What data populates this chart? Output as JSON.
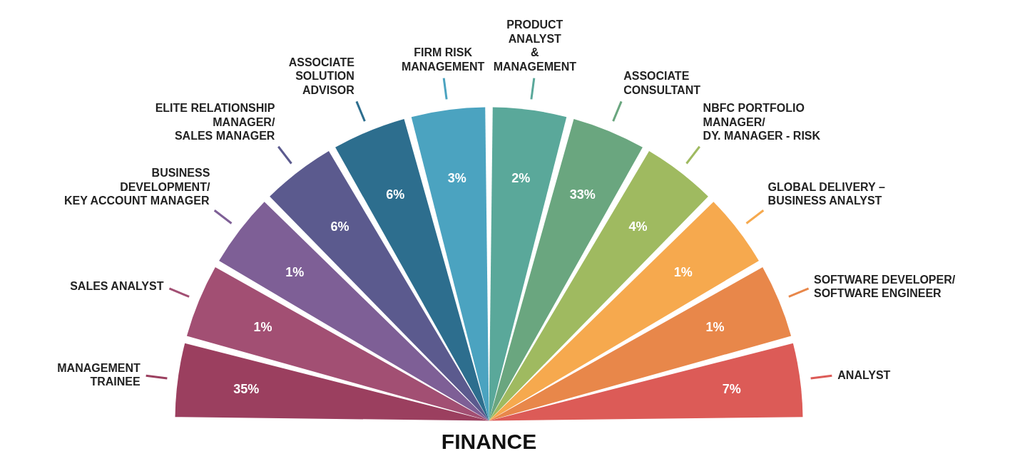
{
  "chart_data": {
    "type": "other",
    "title": "FINANCE",
    "categories": [
      "MANAGEMENT\nTRAINEE",
      "SALES ANALYST",
      "BUSINESS\nDEVELOPMENT/\nKEY ACCOUNT MANAGER",
      "ELITE RELATIONSHIP\nMANAGER/\nSALES MANAGER",
      "ASSOCIATE\nSOLUTION\nADVISOR",
      "FIRM RISK\nMANAGEMENT",
      "PRODUCT\nANALYST\n&\nMANAGEMENT",
      "ASSOCIATE\nCONSULTANT",
      "NBFC PORTFOLIO\nMANAGER/\nDY. MANAGER - RISK",
      "GLOBAL DELIVERY –\nBUSINESS ANALYST",
      "SOFTWARE DEVELOPER/\nSOFTWARE ENGINEER",
      "ANALYST"
    ],
    "values": [
      35,
      1,
      1,
      6,
      6,
      3,
      2,
      33,
      4,
      1,
      1,
      7
    ],
    "value_labels": [
      "35%",
      "1%",
      "1%",
      "6%",
      "6%",
      "3%",
      "2%",
      "33%",
      "4%",
      "1%",
      "1%",
      "7%"
    ],
    "colors": [
      "#9b3f5f",
      "#a24f73",
      "#7e5f96",
      "#5b5a8e",
      "#2d6e8e",
      "#4ba3c0",
      "#5aa89a",
      "#6aa67f",
      "#9fba60",
      "#f6a94e",
      "#e8874a",
      "#dc5b57"
    ]
  }
}
